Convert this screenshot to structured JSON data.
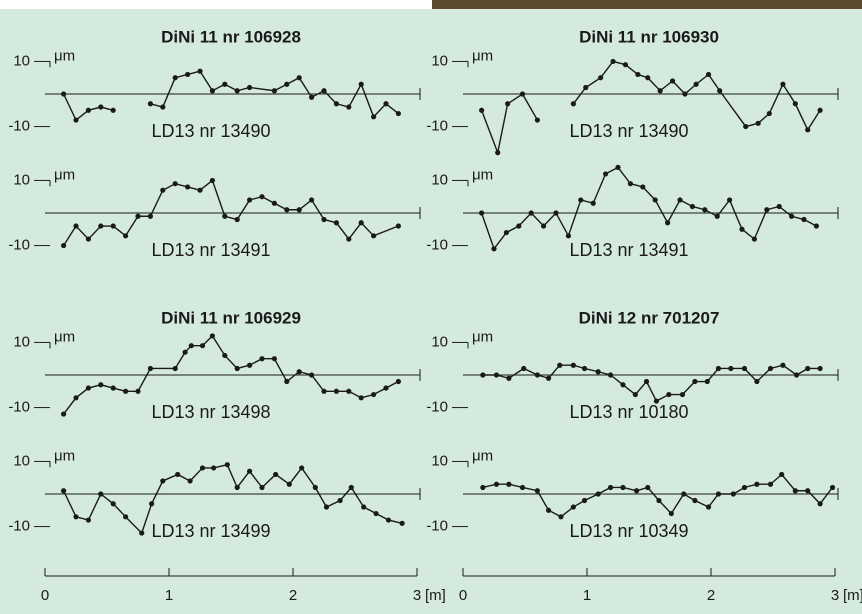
{
  "chart_data": [
    {
      "type": "line",
      "title": "DiNi 11 nr 106928",
      "subtitle": "LD13 nr 13490",
      "y_unit": "μm",
      "color": "#1a1a1a",
      "x": [
        0.15,
        0.25,
        0.35,
        0.45,
        0.55,
        0.7,
        0.85,
        0.95,
        1.05,
        1.15,
        1.25,
        1.35,
        1.45,
        1.55,
        1.65,
        1.85,
        1.95,
        2.05,
        2.15,
        2.25,
        2.35,
        2.45,
        2.55,
        2.65,
        2.75,
        2.85
      ],
      "values": [
        0,
        -8,
        -5,
        -4,
        -5,
        null,
        -3,
        -4,
        5,
        6,
        7,
        1,
        3,
        1,
        2,
        1,
        3,
        5,
        -1,
        1,
        -3,
        -4,
        3,
        -7,
        -3,
        -6
      ],
      "xlim": [
        0,
        3
      ],
      "ylim": [
        -20,
        15
      ],
      "yticks": [
        10,
        -10
      ]
    },
    {
      "type": "line",
      "subtitle": "LD13 nr 13491",
      "y_unit": "μm",
      "color": "#1a1a1a",
      "x": [
        0.15,
        0.25,
        0.35,
        0.45,
        0.55,
        0.65,
        0.75,
        0.85,
        0.95,
        1.05,
        1.15,
        1.25,
        1.35,
        1.45,
        1.55,
        1.65,
        1.75,
        1.85,
        1.95,
        2.05,
        2.15,
        2.25,
        2.35,
        2.45,
        2.55,
        2.65,
        2.85
      ],
      "values": [
        -10,
        -4,
        -8,
        -4,
        -4,
        -7,
        -1,
        -1,
        7,
        9,
        8,
        7,
        10,
        -1,
        -2,
        4,
        5,
        3,
        1,
        1,
        4,
        -2,
        -3,
        -8,
        -3,
        -7,
        -4
      ],
      "xlim": [
        0,
        3
      ],
      "ylim": [
        -20,
        15
      ],
      "yticks": [
        10,
        -10
      ]
    },
    {
      "type": "line",
      "title": "DiNi 11 nr 106930",
      "subtitle": "LD13 nr 13490",
      "y_unit": "μm",
      "color": "#1a1a1a",
      "x": [
        0.15,
        0.28,
        0.36,
        0.48,
        0.6,
        0.75,
        0.89,
        0.99,
        1.11,
        1.21,
        1.31,
        1.41,
        1.49,
        1.59,
        1.69,
        1.79,
        1.88,
        1.98,
        2.07,
        2.28,
        2.38,
        2.47,
        2.58,
        2.68,
        2.78,
        2.88
      ],
      "values": [
        -5,
        -18,
        -3,
        0,
        -8,
        null,
        -3,
        2,
        5,
        10,
        9,
        6,
        5,
        1,
        4,
        0,
        3,
        6,
        1,
        -10,
        -9,
        -6,
        3,
        -3,
        -11,
        -5
      ],
      "xlim": [
        0,
        3
      ],
      "ylim": [
        -20,
        15
      ],
      "yticks": [
        10,
        -10
      ]
    },
    {
      "type": "line",
      "subtitle": "LD13 nr 13491",
      "y_unit": "μm",
      "color": "#1a1a1a",
      "x": [
        0.15,
        0.25,
        0.35,
        0.45,
        0.55,
        0.65,
        0.75,
        0.85,
        0.95,
        1.05,
        1.15,
        1.25,
        1.35,
        1.45,
        1.55,
        1.65,
        1.75,
        1.85,
        1.95,
        2.05,
        2.15,
        2.25,
        2.35,
        2.45,
        2.55,
        2.65,
        2.75,
        2.85
      ],
      "values": [
        0,
        -11,
        -6,
        -4,
        0,
        -4,
        0,
        -7,
        4,
        3,
        12,
        14,
        9,
        8,
        4,
        -3,
        4,
        2,
        1,
        -1,
        4,
        -5,
        -8,
        1,
        2,
        -1,
        -2,
        -4
      ],
      "xlim": [
        0,
        3
      ],
      "ylim": [
        -20,
        15
      ],
      "yticks": [
        10,
        -10
      ]
    },
    {
      "type": "line",
      "title": "DiNi 11 nr 106929",
      "subtitle": "LD13 nr 13498",
      "y_unit": "μm",
      "color": "#1a1a1a",
      "x": [
        0.15,
        0.25,
        0.35,
        0.45,
        0.55,
        0.65,
        0.75,
        0.85,
        1.05,
        1.13,
        1.18,
        1.27,
        1.35,
        1.45,
        1.55,
        1.65,
        1.75,
        1.85,
        1.95,
        2.05,
        2.15,
        2.25,
        2.35,
        2.45,
        2.55,
        2.65,
        2.75,
        2.85
      ],
      "values": [
        -12,
        -7,
        -4,
        -3,
        -4,
        -5,
        -5,
        2,
        2,
        7,
        9,
        9,
        12,
        6,
        2,
        3,
        5,
        5,
        -2,
        1,
        0,
        -5,
        -5,
        -5,
        -7,
        -6,
        -4,
        -2
      ],
      "xlim": [
        0,
        3
      ],
      "ylim": [
        -20,
        15
      ],
      "yticks": [
        10,
        -10
      ]
    },
    {
      "type": "line",
      "subtitle": "LD13 nr 13499",
      "y_unit": "μm",
      "color": "#1a1a1a",
      "x": [
        0.15,
        0.25,
        0.35,
        0.45,
        0.55,
        0.65,
        0.78,
        0.86,
        0.95,
        1.07,
        1.17,
        1.27,
        1.36,
        1.47,
        1.55,
        1.65,
        1.75,
        1.86,
        1.97,
        2.07,
        2.18,
        2.27,
        2.38,
        2.47,
        2.57,
        2.67,
        2.77,
        2.88
      ],
      "values": [
        1,
        -7,
        -8,
        0,
        -3,
        -7,
        -12,
        -3,
        4,
        6,
        4,
        8,
        8,
        9,
        2,
        7,
        2,
        6,
        3,
        8,
        2,
        -4,
        -2,
        2,
        -4,
        -6,
        -8,
        -9
      ],
      "xlim": [
        0,
        3
      ],
      "ylim": [
        -20,
        15
      ],
      "yticks": [
        10,
        -10
      ],
      "xticks": [
        0,
        1,
        2,
        3
      ],
      "xlabel": "[m]"
    },
    {
      "type": "line",
      "title": "DiNi 12 nr 701207",
      "subtitle": "LD13 nr 10180",
      "y_unit": "μm",
      "color": "#1a1a1a",
      "x": [
        0.16,
        0.27,
        0.37,
        0.49,
        0.6,
        0.69,
        0.78,
        0.89,
        0.98,
        1.09,
        1.19,
        1.29,
        1.39,
        1.48,
        1.56,
        1.66,
        1.77,
        1.87,
        1.97,
        2.06,
        2.16,
        2.27,
        2.37,
        2.48,
        2.58,
        2.69,
        2.78,
        2.88
      ],
      "values": [
        0,
        0,
        -1,
        2,
        0,
        -1,
        3,
        3,
        2,
        1,
        0,
        -3,
        -6,
        -2,
        -8,
        -6,
        -6,
        -2,
        -2,
        2,
        2,
        2,
        -2,
        2,
        3,
        0,
        2,
        2
      ],
      "xlim": [
        0,
        3
      ],
      "ylim": [
        -20,
        15
      ],
      "yticks": [
        10,
        -10
      ]
    },
    {
      "type": "line",
      "subtitle": "LD13 nr 10349",
      "y_unit": "μm",
      "color": "#1a1a1a",
      "x": [
        0.16,
        0.27,
        0.37,
        0.48,
        0.6,
        0.69,
        0.79,
        0.89,
        0.98,
        1.09,
        1.19,
        1.29,
        1.4,
        1.49,
        1.58,
        1.68,
        1.78,
        1.87,
        1.98,
        2.06,
        2.18,
        2.27,
        2.37,
        2.48,
        2.57,
        2.68,
        2.78,
        2.88,
        2.98
      ],
      "values": [
        2,
        3,
        3,
        2,
        1,
        -5,
        -7,
        -4,
        -2,
        0,
        2,
        2,
        1,
        2,
        -2,
        -6,
        0,
        -2,
        -4,
        0,
        0,
        2,
        3,
        3,
        6,
        1,
        1,
        -3,
        2
      ],
      "xlim": [
        0,
        3
      ],
      "ylim": [
        -20,
        15
      ],
      "yticks": [
        10,
        -10
      ],
      "xticks": [
        0,
        1,
        2,
        3
      ],
      "xlabel": "[m]"
    }
  ]
}
